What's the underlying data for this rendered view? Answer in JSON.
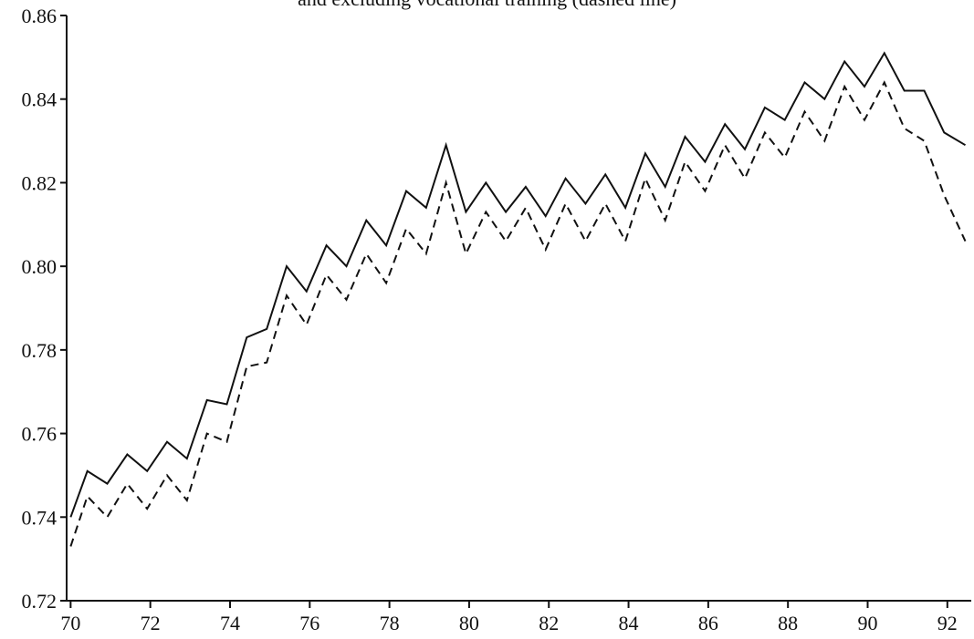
{
  "chart_data": {
    "type": "line",
    "title": "and excluding vocational training (dashed line)",
    "xlabel": "",
    "ylabel": "",
    "xlim": [
      69.9,
      92.6
    ],
    "ylim": [
      0.72,
      0.86
    ],
    "x_ticks": [
      "70",
      "72",
      "74",
      "76",
      "78",
      "80",
      "82",
      "84",
      "86",
      "88",
      "90",
      "92"
    ],
    "y_ticks": [
      "0.72",
      "0.74",
      "0.76",
      "0.78",
      "0.80",
      "0.82",
      "0.84",
      "0.86"
    ],
    "grid": false,
    "series": [
      {
        "style": "solid",
        "x": [
          70.0,
          70.42,
          70.92,
          71.42,
          71.92,
          72.42,
          72.92,
          73.42,
          73.92,
          74.42,
          74.92,
          75.42,
          75.92,
          76.42,
          76.92,
          77.42,
          77.92,
          78.42,
          78.92,
          79.42,
          79.92,
          80.42,
          80.92,
          81.42,
          81.92,
          82.42,
          82.92,
          83.42,
          83.92,
          84.42,
          84.92,
          85.42,
          85.92,
          86.42,
          86.92,
          87.42,
          87.92,
          88.42,
          88.92,
          89.42,
          89.92,
          90.42,
          90.92,
          91.42,
          91.92,
          92.45
        ],
        "y": [
          0.74,
          0.751,
          0.748,
          0.755,
          0.751,
          0.758,
          0.754,
          0.768,
          0.767,
          0.783,
          0.785,
          0.8,
          0.794,
          0.805,
          0.8,
          0.811,
          0.805,
          0.818,
          0.814,
          0.829,
          0.813,
          0.82,
          0.813,
          0.819,
          0.812,
          0.821,
          0.815,
          0.822,
          0.814,
          0.827,
          0.819,
          0.831,
          0.825,
          0.834,
          0.828,
          0.838,
          0.835,
          0.844,
          0.84,
          0.849,
          0.843,
          0.851,
          0.842,
          0.842,
          0.832,
          0.829
        ]
      },
      {
        "style": "dashed",
        "x": [
          70.0,
          70.42,
          70.92,
          71.42,
          71.92,
          72.42,
          72.92,
          73.42,
          73.92,
          74.42,
          74.92,
          75.42,
          75.92,
          76.42,
          76.92,
          77.42,
          77.92,
          78.42,
          78.92,
          79.42,
          79.92,
          80.42,
          80.92,
          81.42,
          81.92,
          82.42,
          82.92,
          83.42,
          83.92,
          84.42,
          84.92,
          85.42,
          85.92,
          86.42,
          86.92,
          87.42,
          87.92,
          88.42,
          88.92,
          89.42,
          89.92,
          90.42,
          90.92,
          91.42,
          91.92,
          92.45
        ],
        "y": [
          0.733,
          0.745,
          0.74,
          0.748,
          0.742,
          0.75,
          0.744,
          0.76,
          0.758,
          0.776,
          0.777,
          0.793,
          0.786,
          0.798,
          0.792,
          0.803,
          0.796,
          0.809,
          0.803,
          0.82,
          0.803,
          0.813,
          0.806,
          0.814,
          0.804,
          0.815,
          0.806,
          0.815,
          0.806,
          0.821,
          0.811,
          0.825,
          0.818,
          0.829,
          0.821,
          0.832,
          0.826,
          0.837,
          0.83,
          0.843,
          0.835,
          0.844,
          0.833,
          0.83,
          0.817,
          0.806
        ]
      }
    ]
  }
}
